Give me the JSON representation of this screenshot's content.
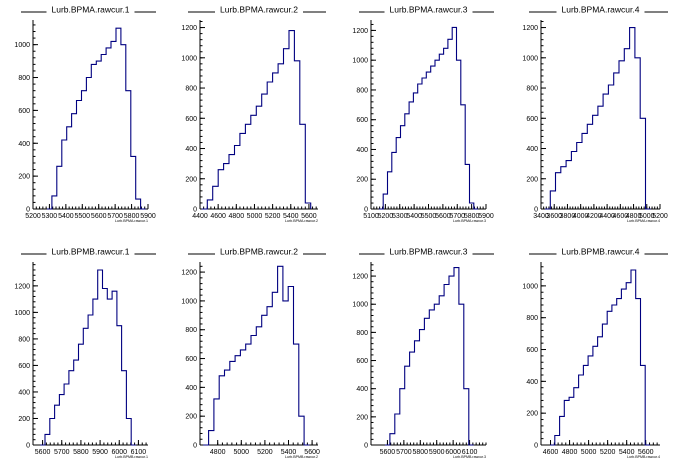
{
  "chart_data": [
    {
      "type": "histogram",
      "title": "Lurb.BPMA.rawcur.1",
      "xlabel": "Lurb.BPMA.rawcur.1",
      "xlim": [
        5200,
        5900
      ],
      "ylim": [
        0,
        1150
      ],
      "x_ticks": [
        5200,
        5300,
        5400,
        5500,
        5600,
        5700,
        5800,
        5900
      ],
      "y_ticks": [
        0,
        200,
        400,
        600,
        800,
        1000
      ],
      "x": [
        5300,
        5330,
        5360,
        5390,
        5420,
        5450,
        5480,
        5510,
        5540,
        5570,
        5600,
        5630,
        5660,
        5690,
        5720,
        5750,
        5780,
        5810,
        5840,
        5870
      ],
      "values": [
        0,
        80,
        260,
        420,
        500,
        580,
        660,
        720,
        800,
        880,
        900,
        940,
        980,
        1020,
        1100,
        1000,
        720,
        320,
        60,
        0
      ]
    },
    {
      "type": "histogram",
      "title": "Lurb.BPMA.rawcur.2",
      "xlabel": "Lurb.BPMA.rawcur.2",
      "xlim": [
        4400,
        5700
      ],
      "ylim": [
        0,
        1250
      ],
      "x_ticks": [
        4400,
        4600,
        4800,
        5000,
        5200,
        5400,
        5600
      ],
      "y_ticks": [
        0,
        200,
        400,
        600,
        800,
        1000,
        1200
      ],
      "x": [
        4450,
        4510,
        4570,
        4630,
        4690,
        4750,
        4810,
        4870,
        4930,
        4990,
        5050,
        5110,
        5170,
        5230,
        5290,
        5350,
        5410,
        5470,
        5530,
        5590
      ],
      "values": [
        0,
        60,
        150,
        260,
        300,
        360,
        420,
        500,
        560,
        620,
        680,
        760,
        840,
        900,
        960,
        1060,
        1180,
        980,
        560,
        40
      ]
    },
    {
      "type": "histogram",
      "title": "Lurb.BPMA.rawcur.3",
      "xlabel": "Lurb.BPMA.rawcur.3",
      "xlim": [
        5100,
        5900
      ],
      "ylim": [
        0,
        1270
      ],
      "x_ticks": [
        5100,
        5200,
        5300,
        5400,
        5500,
        5600,
        5700,
        5800,
        5900
      ],
      "y_ticks": [
        0,
        200,
        400,
        600,
        800,
        1000,
        1200
      ],
      "x": [
        5170,
        5200,
        5230,
        5260,
        5290,
        5320,
        5350,
        5380,
        5410,
        5440,
        5470,
        5500,
        5530,
        5560,
        5590,
        5620,
        5650,
        5680,
        5710,
        5740,
        5770,
        5800,
        5830
      ],
      "values": [
        0,
        100,
        250,
        380,
        480,
        560,
        640,
        720,
        780,
        840,
        880,
        920,
        960,
        1000,
        1040,
        1080,
        1140,
        1220,
        1000,
        700,
        300,
        40,
        0
      ]
    },
    {
      "type": "histogram",
      "title": "Lurb.BPMA.rawcur.4",
      "xlabel": "Lurb.BPMA.rawcur.4",
      "xlim": [
        3400,
        5200
      ],
      "ylim": [
        0,
        1250
      ],
      "x_ticks": [
        3400,
        3600,
        3800,
        4000,
        4200,
        4400,
        4600,
        4800,
        5000,
        5200
      ],
      "y_ticks": [
        0,
        200,
        400,
        600,
        800,
        1000,
        1200
      ],
      "x": [
        3500,
        3580,
        3660,
        3740,
        3820,
        3900,
        3980,
        4060,
        4140,
        4220,
        4300,
        4380,
        4460,
        4540,
        4620,
        4700,
        4780,
        4860,
        4940,
        5020
      ],
      "values": [
        0,
        120,
        240,
        280,
        320,
        380,
        440,
        500,
        560,
        620,
        680,
        760,
        820,
        900,
        980,
        1060,
        1200,
        1000,
        600,
        0
      ]
    },
    {
      "type": "histogram",
      "title": "Lurb.BPMB.rawcur.1",
      "xlabel": "Lurb.BPMB.rawcur.1",
      "xlim": [
        5550,
        6150
      ],
      "ylim": [
        0,
        1380
      ],
      "x_ticks": [
        5600,
        5700,
        5800,
        5900,
        6000,
        6100
      ],
      "y_ticks": [
        0,
        200,
        400,
        600,
        800,
        1000,
        1200
      ],
      "x": [
        5600,
        5625,
        5650,
        5675,
        5700,
        5725,
        5750,
        5775,
        5800,
        5825,
        5850,
        5875,
        5900,
        5925,
        5950,
        5975,
        6000,
        6025,
        6050,
        6075
      ],
      "values": [
        0,
        80,
        200,
        300,
        380,
        460,
        560,
        640,
        760,
        880,
        980,
        1100,
        1320,
        1180,
        1100,
        1160,
        900,
        560,
        200,
        0
      ]
    },
    {
      "type": "histogram",
      "title": "Lurb.BPMB.rawcur.2",
      "xlabel": "Lurb.BPMB.rawcur.2",
      "xlim": [
        4650,
        5650
      ],
      "ylim": [
        0,
        1270
      ],
      "x_ticks": [
        4800,
        5000,
        5200,
        5400,
        5600
      ],
      "y_ticks": [
        0,
        200,
        400,
        600,
        800,
        1000,
        1200
      ],
      "x": [
        4700,
        4745,
        4790,
        4835,
        4880,
        4925,
        4970,
        5015,
        5060,
        5105,
        5150,
        5195,
        5240,
        5285,
        5330,
        5375,
        5420,
        5465,
        5510,
        5555
      ],
      "values": [
        0,
        100,
        320,
        480,
        520,
        580,
        620,
        660,
        700,
        760,
        820,
        900,
        960,
        1060,
        1240,
        1000,
        1100,
        700,
        200,
        0
      ]
    },
    {
      "type": "histogram",
      "title": "Lurb.BPMB.rawcur.3",
      "xlabel": "Lurb.BPMB.rawcur.3",
      "xlim": [
        5500,
        6200
      ],
      "ylim": [
        0,
        1300
      ],
      "x_ticks": [
        5600,
        5700,
        5800,
        5900,
        6000,
        6100
      ],
      "y_ticks": [
        0,
        200,
        400,
        600,
        800,
        1000,
        1200
      ],
      "x": [
        5600,
        5630,
        5660,
        5690,
        5720,
        5750,
        5780,
        5810,
        5840,
        5870,
        5900,
        5930,
        5960,
        5990,
        6020,
        6050,
        6080,
        6110
      ],
      "values": [
        0,
        80,
        220,
        400,
        560,
        660,
        740,
        820,
        900,
        960,
        1000,
        1060,
        1140,
        1200,
        1260,
        1000,
        400,
        0
      ]
    },
    {
      "type": "histogram",
      "title": "Lurb.BPMB.rawcur.4",
      "xlabel": "Lurb.BPMB.rawcur.4",
      "xlim": [
        4500,
        5750
      ],
      "ylim": [
        0,
        1150
      ],
      "x_ticks": [
        4600,
        4800,
        5000,
        5200,
        5400,
        5600
      ],
      "y_ticks": [
        0,
        200,
        400,
        600,
        800,
        1000
      ],
      "x": [
        4620,
        4670,
        4720,
        4770,
        4820,
        4870,
        4920,
        4970,
        5020,
        5070,
        5120,
        5170,
        5220,
        5270,
        5320,
        5370,
        5420,
        5470,
        5520,
        5570,
        5620
      ],
      "values": [
        0,
        60,
        180,
        280,
        300,
        360,
        440,
        500,
        560,
        620,
        680,
        760,
        840,
        880,
        920,
        980,
        1020,
        1100,
        920,
        500,
        0
      ]
    }
  ]
}
